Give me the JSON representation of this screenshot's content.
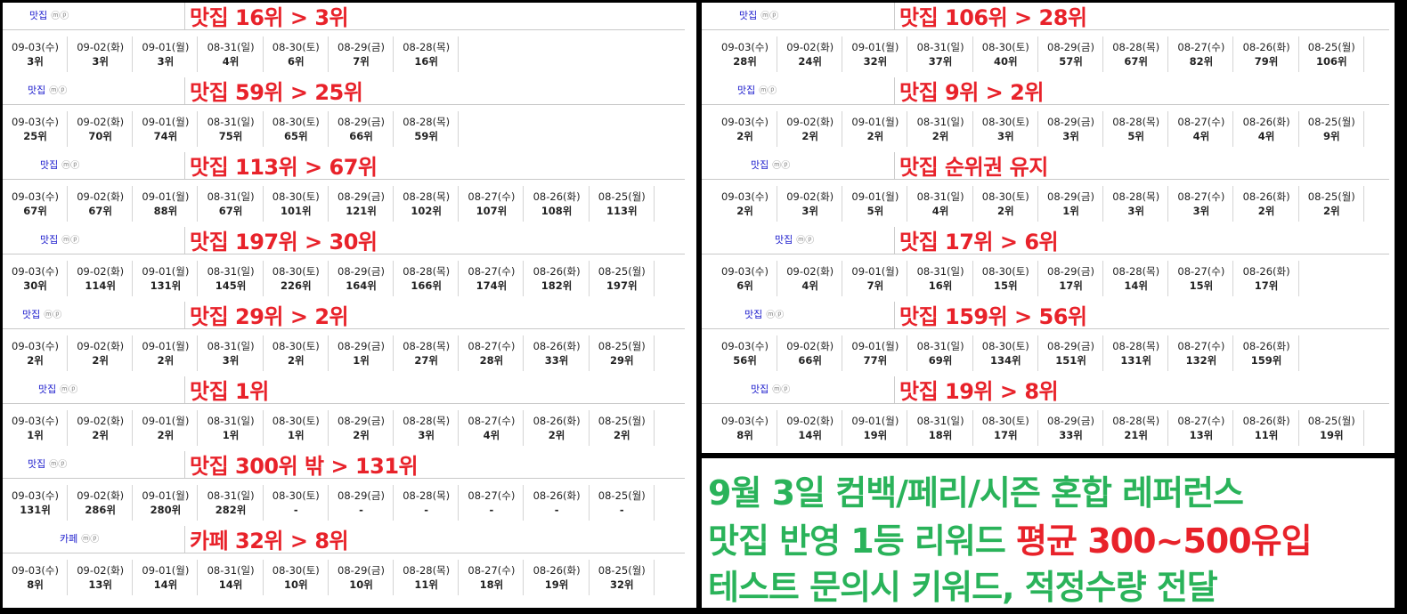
{
  "left": [
    {
      "cat": "맛집",
      "icons": "ⓜⓟ",
      "headline": "맛집 16위 > 3위",
      "dates": [
        "09-03(수)",
        "09-02(화)",
        "09-01(월)",
        "08-31(일)",
        "08-30(토)",
        "08-29(금)",
        "08-28(목)"
      ],
      "ranks": [
        "3위",
        "3위",
        "3위",
        "4위",
        "6위",
        "7위",
        "16위"
      ]
    },
    {
      "cat": "맛집",
      "icons": "ⓜⓟ",
      "headline": "맛집 59위 > 25위",
      "dates": [
        "09-03(수)",
        "09-02(화)",
        "09-01(월)",
        "08-31(일)",
        "08-30(토)",
        "08-29(금)",
        "08-28(목)"
      ],
      "ranks": [
        "25위",
        "70위",
        "74위",
        "75위",
        "65위",
        "66위",
        "59위"
      ]
    },
    {
      "cat": "맛집",
      "icons": "ⓜⓟ",
      "headline": "맛집 113위 > 67위",
      "dates": [
        "09-03(수)",
        "09-02(화)",
        "09-01(월)",
        "08-31(일)",
        "08-30(토)",
        "08-29(금)",
        "08-28(목)",
        "08-27(수)",
        "08-26(화)",
        "08-25(월)"
      ],
      "ranks": [
        "67위",
        "67위",
        "88위",
        "67위",
        "101위",
        "121위",
        "102위",
        "107위",
        "108위",
        "113위"
      ]
    },
    {
      "cat": "맛집",
      "icons": "ⓜⓟ",
      "headline": "맛집 197위 > 30위",
      "dates": [
        "09-03(수)",
        "09-02(화)",
        "09-01(월)",
        "08-31(일)",
        "08-30(토)",
        "08-29(금)",
        "08-28(목)",
        "08-27(수)",
        "08-26(화)",
        "08-25(월)"
      ],
      "ranks": [
        "30위",
        "114위",
        "131위",
        "145위",
        "226위",
        "164위",
        "166위",
        "174위",
        "182위",
        "197위"
      ]
    },
    {
      "cat": "맛집",
      "icons": "ⓜⓟ",
      "headline": "맛집 29위 > 2위",
      "dates": [
        "09-03(수)",
        "09-02(화)",
        "09-01(월)",
        "08-31(일)",
        "08-30(토)",
        "08-29(금)",
        "08-28(목)",
        "08-27(수)",
        "08-26(화)",
        "08-25(월)"
      ],
      "ranks": [
        "2위",
        "2위",
        "2위",
        "3위",
        "2위",
        "1위",
        "27위",
        "28위",
        "33위",
        "29위"
      ]
    },
    {
      "cat": "맛집",
      "icons": "ⓜⓟ",
      "headline": "맛집 1위",
      "dates": [
        "09-03(수)",
        "09-02(화)",
        "09-01(월)",
        "08-31(일)",
        "08-30(토)",
        "08-29(금)",
        "08-28(목)",
        "08-27(수)",
        "08-26(화)",
        "08-25(월)"
      ],
      "ranks": [
        "1위",
        "2위",
        "2위",
        "1위",
        "1위",
        "2위",
        "3위",
        "4위",
        "2위",
        "2위"
      ]
    },
    {
      "cat": "맛집",
      "icons": "ⓜⓟ",
      "headline": "맛집 300위 밖 > 131위",
      "dates": [
        "09-03(수)",
        "09-02(화)",
        "09-01(월)",
        "08-31(일)",
        "08-30(토)",
        "08-29(금)",
        "08-28(목)",
        "08-27(수)",
        "08-26(화)",
        "08-25(월)"
      ],
      "ranks": [
        "131위",
        "286위",
        "280위",
        "282위",
        "-",
        "-",
        "-",
        "-",
        "-",
        "-"
      ]
    },
    {
      "cat": "카페",
      "icons": "ⓜⓟ",
      "headline": "카페 32위 > 8위",
      "dates": [
        "09-03(수)",
        "09-02(화)",
        "09-01(월)",
        "08-31(일)",
        "08-30(토)",
        "08-29(금)",
        "08-28(목)",
        "08-27(수)",
        "08-26(화)",
        "08-25(월)"
      ],
      "ranks": [
        "8위",
        "13위",
        "14위",
        "14위",
        "10위",
        "10위",
        "11위",
        "18위",
        "19위",
        "32위"
      ]
    }
  ],
  "right": [
    {
      "cat": "맛집",
      "icons": "ⓜⓟ",
      "headline": "맛집 106위 > 28위",
      "dates": [
        "09-03(수)",
        "09-02(화)",
        "09-01(월)",
        "08-31(일)",
        "08-30(토)",
        "08-29(금)",
        "08-28(목)",
        "08-27(수)",
        "08-26(화)",
        "08-25(월)"
      ],
      "ranks": [
        "28위",
        "24위",
        "32위",
        "37위",
        "40위",
        "57위",
        "67위",
        "82위",
        "79위",
        "106위"
      ]
    },
    {
      "cat": "맛집",
      "icons": "ⓜⓟ",
      "headline": "맛집 9위 > 2위",
      "dates": [
        "09-03(수)",
        "09-02(화)",
        "09-01(월)",
        "08-31(일)",
        "08-30(토)",
        "08-29(금)",
        "08-28(목)",
        "08-27(수)",
        "08-26(화)",
        "08-25(월)"
      ],
      "ranks": [
        "2위",
        "2위",
        "2위",
        "2위",
        "3위",
        "3위",
        "5위",
        "4위",
        "4위",
        "9위"
      ]
    },
    {
      "cat": "맛집",
      "icons": "ⓜⓟ",
      "headline": "맛집 순위권 유지",
      "dates": [
        "09-03(수)",
        "09-02(화)",
        "09-01(월)",
        "08-31(일)",
        "08-30(토)",
        "08-29(금)",
        "08-28(목)",
        "08-27(수)",
        "08-26(화)",
        "08-25(월)"
      ],
      "ranks": [
        "2위",
        "3위",
        "5위",
        "4위",
        "2위",
        "1위",
        "3위",
        "3위",
        "2위",
        "2위"
      ]
    },
    {
      "cat": "맛집",
      "icons": "ⓜⓟ",
      "headline": "맛집 17위 > 6위",
      "dates": [
        "09-03(수)",
        "09-02(화)",
        "09-01(월)",
        "08-31(일)",
        "08-30(토)",
        "08-29(금)",
        "08-28(목)",
        "08-27(수)",
        "08-26(화)"
      ],
      "ranks": [
        "6위",
        "4위",
        "7위",
        "16위",
        "15위",
        "17위",
        "14위",
        "15위",
        "17위"
      ]
    },
    {
      "cat": "맛집",
      "icons": "ⓜⓟ",
      "headline": "맛집 159위 > 56위",
      "dates": [
        "09-03(수)",
        "09-02(화)",
        "09-01(월)",
        "08-31(일)",
        "08-30(토)",
        "08-29(금)",
        "08-28(목)",
        "08-27(수)",
        "08-26(화)"
      ],
      "ranks": [
        "56위",
        "66위",
        "77위",
        "69위",
        "134위",
        "151위",
        "131위",
        "132위",
        "159위"
      ]
    },
    {
      "cat": "맛집",
      "icons": "ⓜⓟ",
      "headline": "맛집 19위 > 8위",
      "dates": [
        "09-03(수)",
        "09-02(화)",
        "09-01(월)",
        "08-31(일)",
        "08-30(토)",
        "08-29(금)",
        "08-28(목)",
        "08-27(수)",
        "08-26(화)",
        "08-25(월)"
      ],
      "ranks": [
        "8위",
        "14위",
        "19위",
        "18위",
        "17위",
        "33위",
        "21위",
        "13위",
        "11위",
        "19위"
      ]
    }
  ],
  "promo": {
    "line1": "9월 3일 컴백/페리/시즌 혼합 레퍼런스",
    "line2_prefix": "맛집 반영 1등 리워드 ",
    "line2_highlight": "평균 300~500유입",
    "line3": "테스트 문의시 키워드, 적정수량 전달",
    "colors": {
      "green": "#2ab35a",
      "red": "#e8222a"
    }
  }
}
